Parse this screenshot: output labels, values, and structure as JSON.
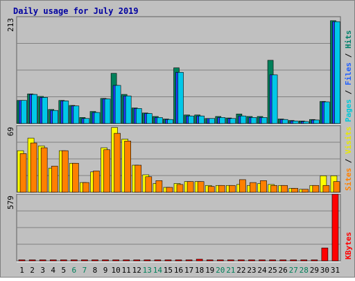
{
  "chart_data": [
    {
      "type": "bar",
      "title": "Daily usage for July 2019",
      "ymax_label": "213",
      "ylim": [
        0,
        213
      ],
      "grid": true,
      "legend": "right-vertical",
      "legend_entries": [
        {
          "text": "Pages",
          "color": "#00c8d8"
        },
        {
          "text": "Files",
          "color": "#2060ff"
        },
        {
          "text": "Hits",
          "color": "#00806a"
        }
      ],
      "series": [
        {
          "name": "Hits",
          "color": "#00805a",
          "values": [
            46,
            59,
            54,
            28,
            46,
            36,
            12,
            24,
            50,
            100,
            58,
            31,
            21,
            14,
            9,
            111,
            17,
            17,
            10,
            14,
            11,
            19,
            14,
            14,
            126,
            9,
            6,
            5,
            8,
            44,
            205
          ]
        },
        {
          "name": "Files",
          "color": "#2040ff",
          "values": [
            46,
            58,
            52,
            26,
            45,
            35,
            10,
            22,
            49,
            76,
            55,
            30,
            20,
            12,
            8,
            102,
            15,
            15,
            10,
            12,
            10,
            15,
            12,
            12,
            97,
            8,
            5,
            4,
            7,
            43,
            203
          ]
        },
        {
          "name": "Pages",
          "color": "#00c8e8",
          "values": [
            46,
            58,
            52,
            26,
            45,
            35,
            10,
            22,
            49,
            76,
            55,
            30,
            20,
            12,
            8,
            102,
            15,
            15,
            10,
            12,
            10,
            15,
            12,
            12,
            97,
            8,
            5,
            4,
            7,
            43,
            203
          ]
        }
      ]
    },
    {
      "type": "bar",
      "ymax_label": "69",
      "ylim": [
        0,
        69
      ],
      "grid": true,
      "legend": "right-vertical",
      "legend_entries": [
        {
          "text": "Sites",
          "color": "#ff8000"
        },
        {
          "text": "Visits",
          "color": "#e8e800"
        }
      ],
      "series": [
        {
          "name": "Visits",
          "color": "#ffff00",
          "values": [
            43,
            56,
            48,
            25,
            43,
            30,
            10,
            21,
            46,
            67,
            55,
            28,
            18,
            9,
            5,
            9,
            11,
            11,
            7,
            7,
            7,
            8,
            7,
            9,
            8,
            7,
            4,
            3,
            7,
            17,
            17
          ]
        },
        {
          "name": "Sites",
          "color": "#ff8000",
          "values": [
            40,
            51,
            46,
            27,
            43,
            30,
            10,
            22,
            44,
            61,
            53,
            28,
            16,
            12,
            5,
            8,
            11,
            11,
            6,
            7,
            7,
            13,
            10,
            12,
            7,
            7,
            4,
            3,
            7,
            7,
            11
          ]
        }
      ]
    },
    {
      "type": "bar",
      "ymax_label": "579",
      "ylim": [
        0,
        579
      ],
      "grid": true,
      "legend": "right-vertical",
      "legend_entries": [
        {
          "text": "KBytes",
          "color": "#ff0000"
        }
      ],
      "series": [
        {
          "name": "KBytes",
          "color": "#ff0000",
          "values": [
            5,
            5,
            5,
            5,
            5,
            5,
            5,
            5,
            5,
            5,
            5,
            5,
            5,
            5,
            5,
            5,
            5,
            15,
            5,
            5,
            5,
            5,
            5,
            5,
            5,
            5,
            5,
            5,
            5,
            112,
            579
          ]
        }
      ]
    }
  ],
  "x_categories": [
    "1",
    "2",
    "3",
    "4",
    "5",
    "6",
    "7",
    "8",
    "9",
    "10",
    "11",
    "12",
    "13",
    "14",
    "15",
    "16",
    "17",
    "18",
    "19",
    "20",
    "21",
    "22",
    "23",
    "24",
    "25",
    "26",
    "27",
    "28",
    "29",
    "30",
    "31"
  ],
  "weekend_days": [
    "6",
    "7",
    "13",
    "14",
    "20",
    "21",
    "27",
    "28"
  ],
  "colors": {
    "background": "#c0c0c0",
    "title": "#0000a0",
    "plot_bg": "#c0c0c0",
    "weekday_label": "#000000",
    "weekend_label": "#00805a",
    "grid": "#808080",
    "separator": "#ffffff",
    "bar_outline": "#000000"
  }
}
